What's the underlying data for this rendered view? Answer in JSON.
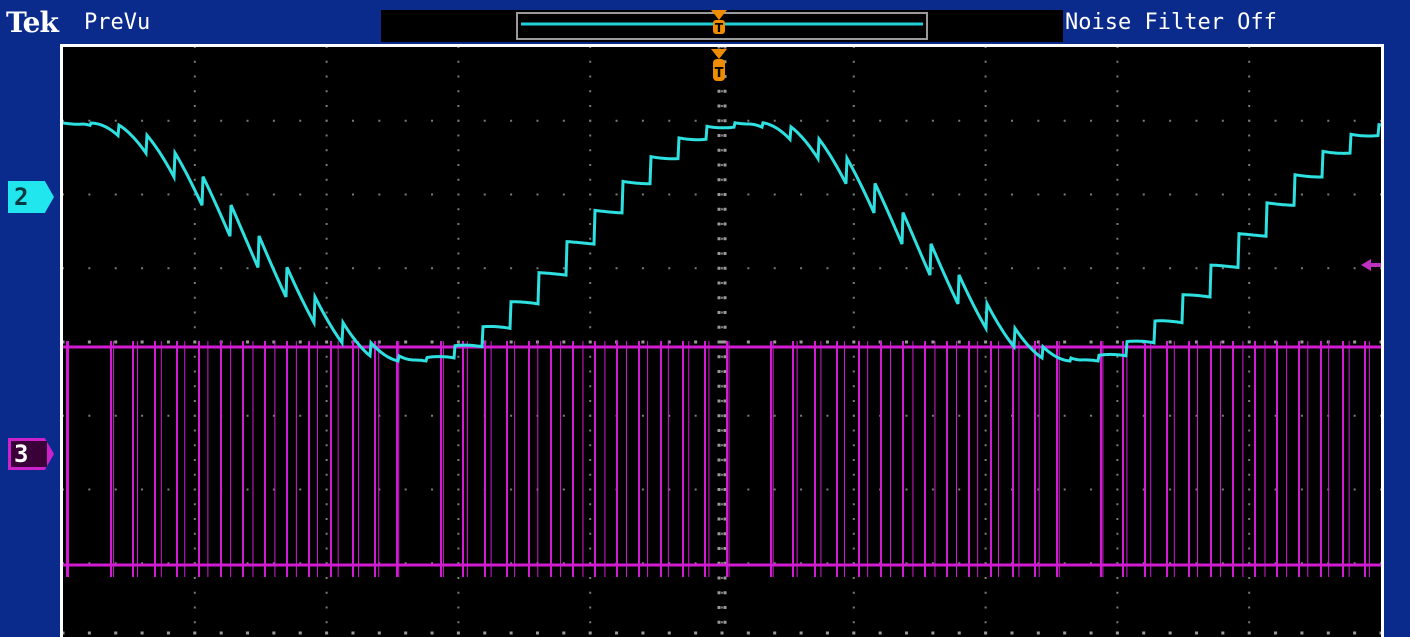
{
  "header": {
    "brand": "Tek",
    "mode": "PreVu",
    "noise_filter": "Noise Filter Off"
  },
  "channels": [
    {
      "label": "2",
      "color": "#2ee0e0"
    },
    {
      "label": "3",
      "color": "#d21cd2"
    }
  ],
  "graticule": {
    "h_divisions": 10,
    "v_divisions": 8
  },
  "colors": {
    "bezel": "#0a2a8c",
    "trigger": "#f08c00",
    "ch2": "#2ee0e0",
    "ch3": "#d21cd2"
  }
}
